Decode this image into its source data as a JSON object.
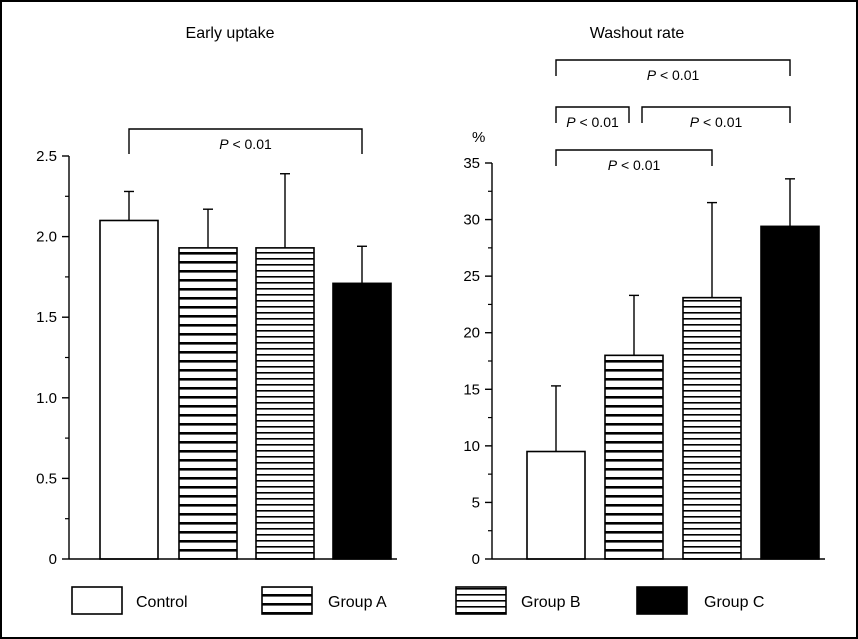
{
  "chart_data": [
    {
      "type": "bar",
      "title": "Early uptake",
      "ylabel": "",
      "ylim": [
        0,
        2.5
      ],
      "yticks": [
        "0",
        "0.5",
        "1.0",
        "1.5",
        "2.0",
        "2.5"
      ],
      "categories": [
        "Control",
        "Group A",
        "Group B",
        "Group C"
      ],
      "values": [
        2.1,
        1.93,
        1.93,
        1.71
      ],
      "errors": [
        0.18,
        0.24,
        0.46,
        0.23
      ],
      "fills": [
        "white",
        "hstripe-dense",
        "hstripe-fine",
        "solid"
      ],
      "comparisons": [
        {
          "from": 0,
          "to": 3,
          "label": "P < 0.01"
        }
      ]
    },
    {
      "type": "bar",
      "title": "Washout rate",
      "ylabel": "%",
      "ylim": [
        0,
        35
      ],
      "yticks": [
        "0",
        "5",
        "10",
        "15",
        "20",
        "25",
        "30",
        "35"
      ],
      "categories": [
        "Control",
        "Group A",
        "Group B",
        "Group C"
      ],
      "values": [
        9.5,
        18.0,
        23.1,
        29.4
      ],
      "errors": [
        5.8,
        5.3,
        8.4,
        4.2
      ],
      "fills": [
        "white",
        "hstripe-dense",
        "hstripe-fine",
        "solid"
      ],
      "comparisons": [
        {
          "from": 0,
          "to": 3,
          "label": "P < 0.01",
          "level": 3
        },
        {
          "from": 0,
          "to": 1,
          "label": "P < 0.01",
          "level": 2
        },
        {
          "from": 1,
          "to": 3,
          "label": "P < 0.01",
          "level": 2
        },
        {
          "from": 0,
          "to": 2,
          "label": "P < 0.01",
          "level": 1
        }
      ]
    }
  ],
  "legend": [
    {
      "label": "Control",
      "fill": "white"
    },
    {
      "label": "Group A",
      "fill": "hstripe-dense"
    },
    {
      "label": "Group B",
      "fill": "hstripe-fine"
    },
    {
      "label": "Group C",
      "fill": "solid"
    }
  ],
  "colors": {
    "ink": "#000000",
    "background": "#ffffff"
  }
}
